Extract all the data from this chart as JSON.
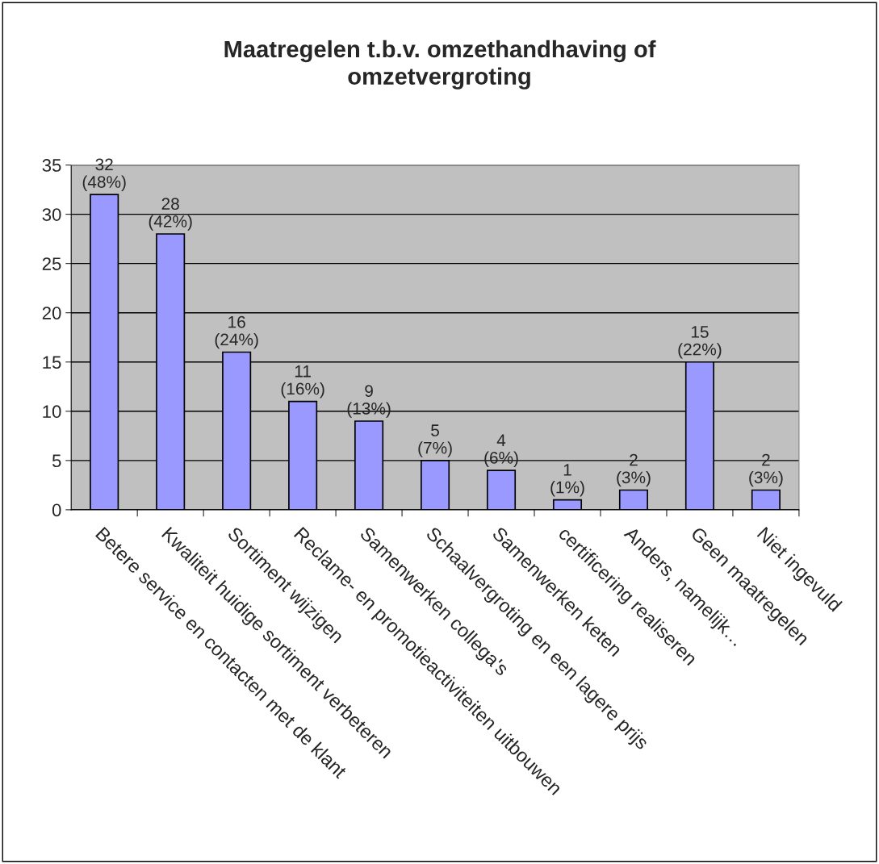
{
  "chart_data": {
    "type": "bar",
    "title": "Maatregelen t.b.v. omzethandhaving of\nomzetvergroting",
    "categories": [
      "Betere service en contacten met de klant",
      "Kwaliteit huidige sortiment verbeteren",
      "Sortiment wijzigen",
      "Reclame- en promotieactiviteiten uitbouwen",
      "Samenwerken collega's",
      "Schaalvergroting en een lagere prijs",
      "Samenwerken keten",
      "certificering realiseren",
      "Anders, namelijk…",
      "Geen maatregelen",
      "Niet ingevuld"
    ],
    "values": [
      32,
      28,
      16,
      11,
      9,
      5,
      4,
      1,
      2,
      15,
      2
    ],
    "value_labels": [
      "32\n(48%)",
      "28\n(42%)",
      "16\n(24%)",
      "11\n(16%)",
      "9\n(13%)",
      "5\n(7%)",
      "4\n(6%)",
      "1\n(1%)",
      "2\n(3%)",
      "15\n(22%)",
      "2\n(3%)"
    ],
    "color": "#9999ff",
    "ylim": [
      0,
      35
    ],
    "yticks": [
      0,
      5,
      10,
      15,
      20,
      25,
      30,
      35
    ],
    "grid": "y",
    "legend": false
  }
}
